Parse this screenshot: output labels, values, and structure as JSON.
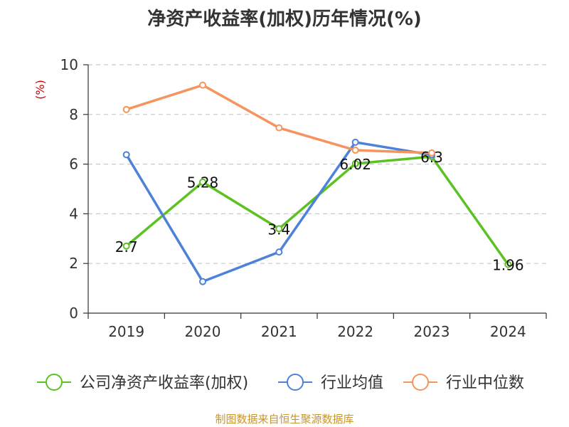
{
  "title": "净资产收益率(加权)历年情况(%)",
  "source": "制图数据来自恒生聚源数据库",
  "chart_data": {
    "type": "line",
    "title": "净资产收益率(加权)历年情况(%)",
    "ylabel": "(%)",
    "xlabel": "",
    "categories": [
      "2019",
      "2020",
      "2021",
      "2022",
      "2023",
      "2024"
    ],
    "ylim": [
      0,
      10
    ],
    "yticks": [
      0,
      2,
      4,
      6,
      8,
      10
    ],
    "grid": true,
    "legend_position": "bottom",
    "series": [
      {
        "name": "公司净资产收益率(加权)",
        "color": "#5cc221",
        "values": [
          2.7,
          5.28,
          3.4,
          6.02,
          6.3,
          1.96
        ],
        "labels": [
          "2.7",
          "5.28",
          "3.4",
          "6.02",
          "6.3",
          "1.96"
        ]
      },
      {
        "name": "行业均值",
        "color": "#4d82d8",
        "values": [
          6.38,
          1.27,
          2.46,
          6.88,
          6.37,
          null
        ]
      },
      {
        "name": "行业中位数",
        "color": "#f5945c",
        "values": [
          8.2,
          9.18,
          7.46,
          6.56,
          6.45,
          null
        ]
      }
    ]
  }
}
